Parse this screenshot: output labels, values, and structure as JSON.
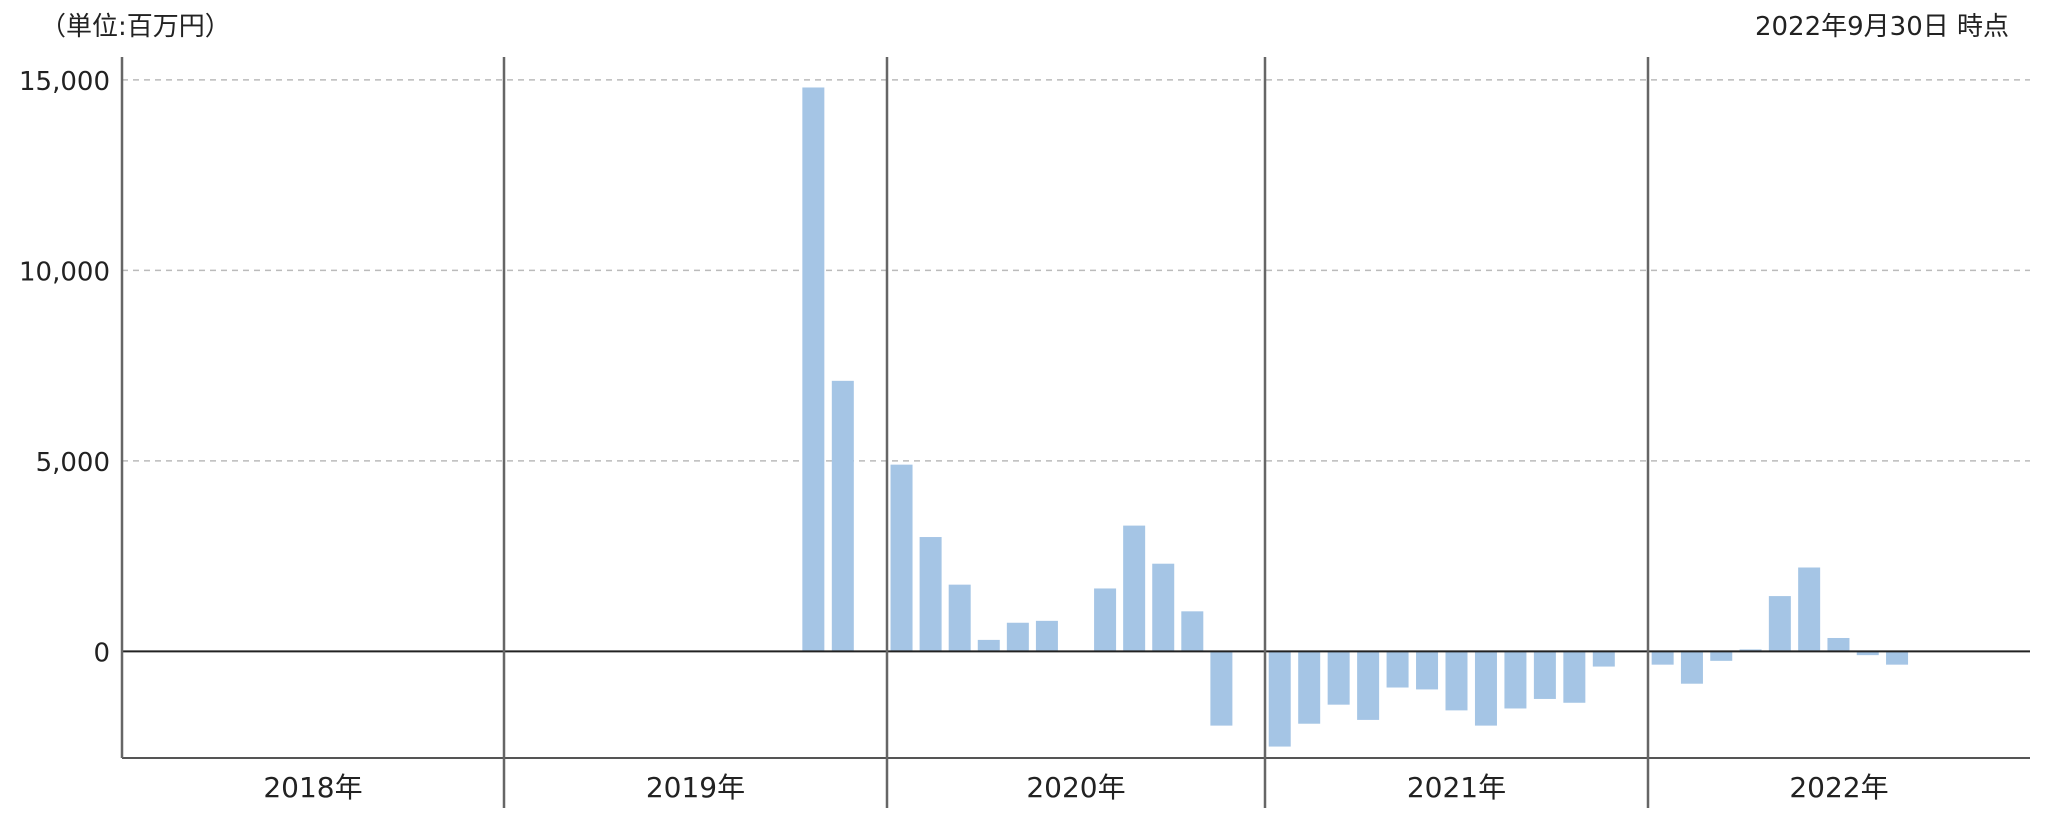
{
  "header": {
    "unit_label": "（単位:百万円）",
    "date_label": "2022年9月30日 時点"
  },
  "chart_data": {
    "type": "bar",
    "title": "",
    "xlabel": "",
    "ylabel": "",
    "ylim": [
      -2800,
      15600
    ],
    "yticks": [
      0,
      5000,
      10000,
      15000
    ],
    "ytick_labels": [
      "0",
      "5,000",
      "10,000",
      "15,000"
    ],
    "grid": true,
    "bar_color": "#a5c5e5",
    "years": [
      "2018年",
      "2019年",
      "2020年",
      "2021年",
      "2022年"
    ],
    "months_per_year": [
      12,
      12,
      12,
      12,
      9
    ],
    "series": [
      {
        "values": [
          null,
          null,
          null,
          null,
          null,
          null,
          null,
          null,
          null,
          null,
          null,
          null,
          null,
          null,
          null,
          null,
          null,
          null,
          null,
          null,
          null,
          null,
          14800,
          7100,
          4900,
          3000,
          1750,
          300,
          750,
          800,
          null,
          1650,
          3300,
          2300,
          1050,
          -1950,
          -2500,
          -1900,
          -1400,
          -1800,
          -950,
          -1000,
          -1550,
          -1950,
          -1500,
          -1250,
          -1350,
          -400,
          -350,
          -850,
          -250,
          50,
          1450,
          2200,
          350,
          -100,
          -350
        ]
      }
    ]
  }
}
